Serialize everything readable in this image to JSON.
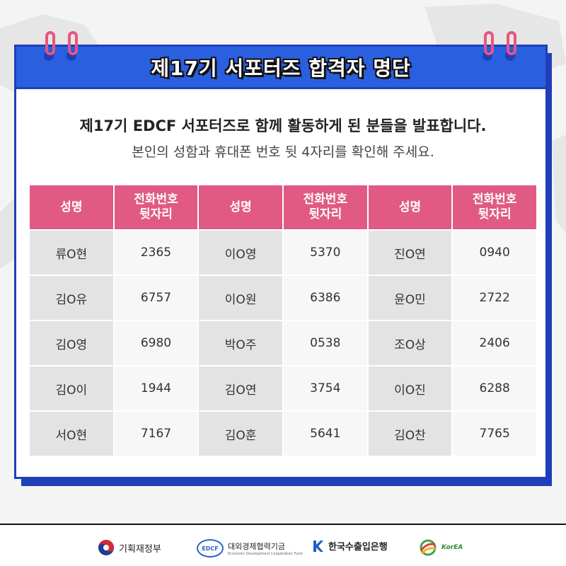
{
  "banner": {
    "title": "제17기 서포터즈 합격자 명단"
  },
  "intro": {
    "line1": "제17기 EDCF 서포터즈로 함께 활동하게 된 분들을 발표합니다.",
    "line2": "본인의 성함과 휴대폰 번호 뒷 4자리를 확인해 주세요."
  },
  "table": {
    "headers": [
      "성명",
      "전화번호\n뒷자리",
      "성명",
      "전화번호\n뒷자리",
      "성명",
      "전화번호\n뒷자리"
    ],
    "rows": [
      [
        "류O현",
        "2365",
        "이O영",
        "5370",
        "진O연",
        "0940"
      ],
      [
        "김O유",
        "6757",
        "이O원",
        "6386",
        "윤O민",
        "2722"
      ],
      [
        "김O영",
        "6980",
        "박O주",
        "0538",
        "조O상",
        "2406"
      ],
      [
        "김O이",
        "1944",
        "김O연",
        "3754",
        "이O진",
        "6288"
      ],
      [
        "서O현",
        "7167",
        "김O훈",
        "5641",
        "김O찬",
        "7765"
      ]
    ]
  },
  "footer": {
    "logos": [
      {
        "label": "기획재정부",
        "icon": "taegeuk-icon"
      },
      {
        "label": "대외경제협력기금",
        "sublabel": "Economic Development Cooperation Fund",
        "badge": "EDCF",
        "icon": "edcf-logo-icon"
      },
      {
        "label": "한국수출입은행",
        "icon": "kexim-k-icon"
      },
      {
        "label": "KorEA",
        "icon": "korea-logo-icon"
      }
    ]
  },
  "colors": {
    "header_blue": "#2a5fe0",
    "border_blue": "#1f3fb8",
    "table_pink": "#e05a83",
    "ring_pink": "#e8557f"
  }
}
